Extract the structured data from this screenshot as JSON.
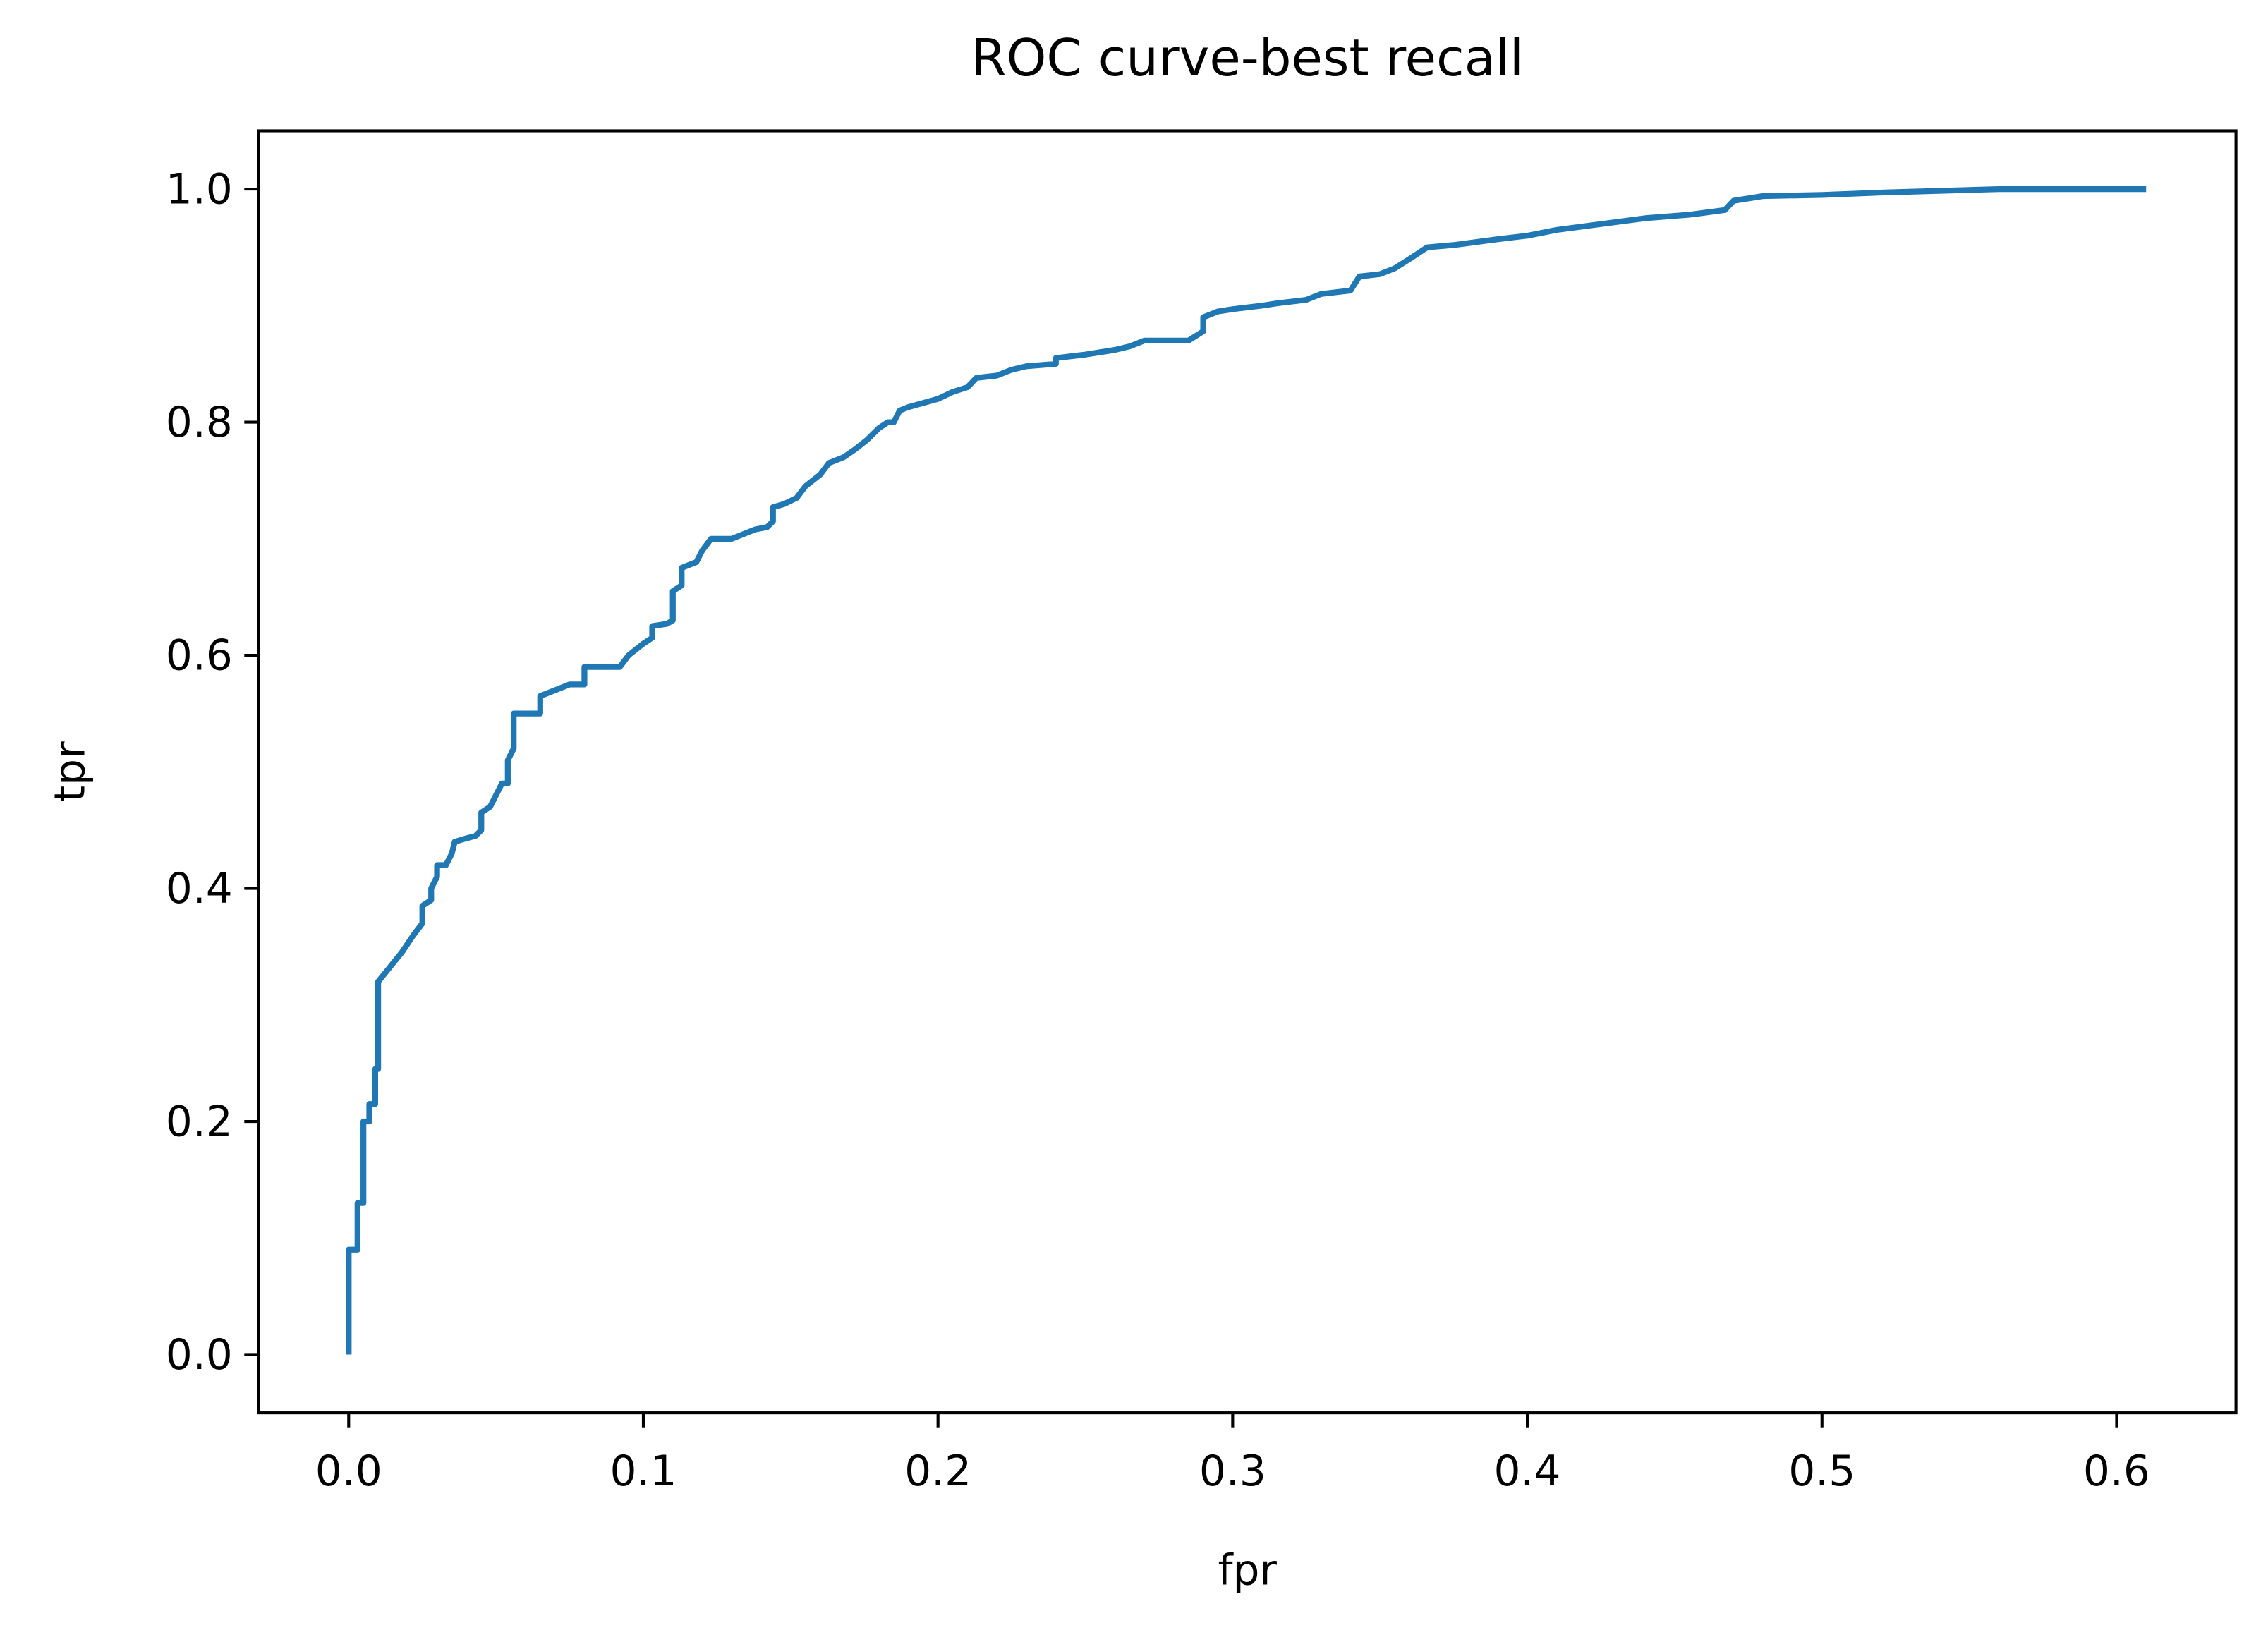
{
  "chart_data": {
    "type": "line",
    "title": "ROC curve-best recall",
    "x_label": "fpr",
    "y_label": "tpr",
    "color": "#1f77b4",
    "x": [
      0,
      0,
      0.003,
      0.003,
      0.005,
      0.005,
      0.007,
      0.007,
      0.009,
      0.009,
      0.01,
      0.01,
      0.018,
      0.022,
      0.025,
      0.025,
      0.028,
      0.028,
      0.03,
      0.03,
      0.033,
      0.035,
      0.036,
      0.04,
      0.043,
      0.045,
      0.045,
      0.048,
      0.05,
      0.052,
      0.054,
      0.054,
      0.056,
      0.056,
      0.065,
      0.065,
      0.07,
      0.075,
      0.08,
      0.08,
      0.092,
      0.095,
      0.1,
      0.103,
      0.103,
      0.108,
      0.11,
      0.11,
      0.113,
      0.113,
      0.118,
      0.12,
      0.123,
      0.13,
      0.138,
      0.142,
      0.144,
      0.144,
      0.148,
      0.152,
      0.155,
      0.16,
      0.163,
      0.168,
      0.172,
      0.176,
      0.18,
      0.183,
      0.185,
      0.187,
      0.19,
      0.2,
      0.205,
      0.21,
      0.213,
      0.22,
      0.225,
      0.23,
      0.24,
      0.24,
      0.25,
      0.26,
      0.265,
      0.27,
      0.285,
      0.29,
      0.29,
      0.295,
      0.3,
      0.31,
      0.315,
      0.325,
      0.33,
      0.34,
      0.343,
      0.35,
      0.355,
      0.36,
      0.366,
      0.375,
      0.39,
      0.4,
      0.41,
      0.425,
      0.44,
      0.455,
      0.467,
      0.47,
      0.48,
      0.5,
      0.52,
      0.56,
      0.61
    ],
    "values": [
      0,
      0.09,
      0.09,
      0.13,
      0.13,
      0.2,
      0.2,
      0.215,
      0.215,
      0.245,
      0.245,
      0.32,
      0.345,
      0.36,
      0.37,
      0.385,
      0.39,
      0.4,
      0.41,
      0.42,
      0.42,
      0.43,
      0.44,
      0.443,
      0.445,
      0.45,
      0.465,
      0.47,
      0.48,
      0.49,
      0.49,
      0.51,
      0.52,
      0.55,
      0.55,
      0.565,
      0.57,
      0.575,
      0.575,
      0.59,
      0.59,
      0.6,
      0.61,
      0.615,
      0.625,
      0.627,
      0.63,
      0.655,
      0.66,
      0.675,
      0.68,
      0.69,
      0.7,
      0.7,
      0.708,
      0.71,
      0.715,
      0.727,
      0.73,
      0.735,
      0.745,
      0.755,
      0.765,
      0.77,
      0.777,
      0.785,
      0.795,
      0.8,
      0.8,
      0.81,
      0.813,
      0.82,
      0.826,
      0.83,
      0.838,
      0.84,
      0.845,
      0.848,
      0.85,
      0.855,
      0.858,
      0.862,
      0.865,
      0.87,
      0.87,
      0.878,
      0.89,
      0.895,
      0.897,
      0.9,
      0.902,
      0.905,
      0.91,
      0.913,
      0.925,
      0.927,
      0.932,
      0.94,
      0.95,
      0.952,
      0.957,
      0.96,
      0.965,
      0.97,
      0.975,
      0.978,
      0.982,
      0.99,
      0.994,
      0.995,
      0.997,
      1.0,
      1.0
    ],
    "xlim": [
      -0.0305,
      0.6405
    ],
    "ylim": [
      -0.05,
      1.05
    ],
    "xticks": [
      {
        "value": 0,
        "label": "0.0"
      },
      0.1,
      0.2,
      0.3,
      0.4,
      0.5,
      0.6
    ],
    "yticks": [
      {
        "value": 0,
        "label": "0.0"
      },
      0.2,
      0.4,
      0.6,
      0.8,
      {
        "value": 1,
        "label": "1.0"
      }
    ]
  }
}
